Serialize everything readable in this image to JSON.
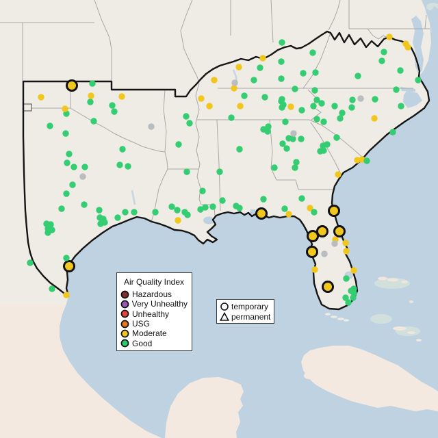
{
  "map": {
    "water_color": "#BFD2E1",
    "land_color": "#EFEBE5",
    "foreign_land_color": "#F3E9E0",
    "shallow_bank_color": "#D5E3DD",
    "state_line_color": "#A8A8A8",
    "region_outline_color": "#151515",
    "category_colors": {
      "g": "#34CD72",
      "m": "#F2C71D",
      "x": "#B9BDBF"
    },
    "large_marker_ring_color": "#111111",
    "points": [
      [
        105,
        125,
        "m",
        1
      ],
      [
        101,
        389,
        "m",
        1
      ],
      [
        382,
        312,
        "m",
        1
      ],
      [
        488,
        308,
        "m",
        1
      ],
      [
        471,
        338,
        "m",
        1
      ],
      [
        457,
        345,
        "m",
        1
      ],
      [
        496,
        338,
        "m",
        1
      ],
      [
        456,
        368,
        "m",
        1
      ],
      [
        479,
        419,
        "m",
        1
      ],
      [
        135,
        122,
        "g"
      ],
      [
        132,
        149,
        "g"
      ],
      [
        164,
        154,
        "g"
      ],
      [
        97,
        166,
        "g"
      ],
      [
        167,
        163,
        "g"
      ],
      [
        137,
        177,
        "g"
      ],
      [
        73,
        184,
        "g"
      ],
      [
        96,
        195,
        "g"
      ],
      [
        179,
        218,
        "g"
      ],
      [
        175,
        241,
        "g"
      ],
      [
        187,
        243,
        "g"
      ],
      [
        60,
        142,
        "m"
      ],
      [
        133,
        140,
        "m"
      ],
      [
        178,
        141,
        "m"
      ],
      [
        95,
        159,
        "m"
      ],
      [
        221,
        185,
        "x"
      ],
      [
        101,
        225,
        "g"
      ],
      [
        98,
        238,
        "g"
      ],
      [
        108,
        244,
        "g"
      ],
      [
        124,
        244,
        "g"
      ],
      [
        121,
        258,
        "x"
      ],
      [
        106,
        270,
        "g"
      ],
      [
        97,
        283,
        "g"
      ],
      [
        90,
        305,
        "g"
      ],
      [
        123,
        299,
        "g"
      ],
      [
        145,
        307,
        "g"
      ],
      [
        68,
        327,
        "g"
      ],
      [
        74,
        328,
        "g"
      ],
      [
        70,
        334,
        "g"
      ],
      [
        76,
        336,
        "g"
      ],
      [
        70,
        340,
        "g"
      ],
      [
        146,
        318,
        "g"
      ],
      [
        151,
        320,
        "g"
      ],
      [
        153,
        325,
        "g"
      ],
      [
        147,
        327,
        "g"
      ],
      [
        172,
        318,
        "g"
      ],
      [
        183,
        310,
        "g"
      ],
      [
        196,
        310,
        "g"
      ],
      [
        44,
        384,
        "g"
      ],
      [
        97,
        377,
        "g"
      ],
      [
        76,
        422,
        "g"
      ],
      [
        97,
        431,
        "m"
      ],
      [
        272,
        170,
        "g"
      ],
      [
        277,
        180,
        "g"
      ],
      [
        261,
        211,
        "g"
      ],
      [
        350,
        218,
        "g"
      ],
      [
        273,
        251,
        "g"
      ],
      [
        321,
        251,
        "g"
      ],
      [
        296,
        279,
        "g"
      ],
      [
        325,
        293,
        "g"
      ],
      [
        251,
        302,
        "g"
      ],
      [
        259,
        307,
        "g"
      ],
      [
        227,
        310,
        "g"
      ],
      [
        270,
        310,
        "g"
      ],
      [
        274,
        314,
        "g"
      ],
      [
        293,
        306,
        "g"
      ],
      [
        300,
        303,
        "g"
      ],
      [
        311,
        302,
        "g"
      ],
      [
        260,
        322,
        "m"
      ],
      [
        294,
        144,
        "m"
      ],
      [
        313,
        117,
        "m"
      ],
      [
        342,
        129,
        "m"
      ],
      [
        343,
        121,
        "x"
      ],
      [
        306,
        155,
        "m"
      ],
      [
        351,
        155,
        "m"
      ],
      [
        384,
        85,
        "m"
      ],
      [
        349,
        98,
        "m"
      ],
      [
        412,
        62,
        "g"
      ],
      [
        411,
        90,
        "g"
      ],
      [
        380,
        99,
        "g"
      ],
      [
        371,
        117,
        "g"
      ],
      [
        411,
        115,
        "g"
      ],
      [
        411,
        148,
        "g"
      ],
      [
        412,
        157,
        "g"
      ],
      [
        357,
        140,
        "g"
      ],
      [
        387,
        142,
        "g"
      ],
      [
        338,
        172,
        "g"
      ],
      [
        392,
        185,
        "g"
      ],
      [
        385,
        189,
        "g"
      ],
      [
        428,
        203,
        "g"
      ],
      [
        425,
        156,
        "m"
      ],
      [
        401,
        245,
        "g"
      ],
      [
        433,
        237,
        "g"
      ],
      [
        431,
        245,
        "g"
      ],
      [
        385,
        291,
        "g"
      ],
      [
        345,
        301,
        "g"
      ],
      [
        350,
        304,
        "g"
      ],
      [
        416,
        305,
        "g"
      ],
      [
        422,
        313,
        "m"
      ],
      [
        391,
        192,
        "g"
      ],
      [
        413,
        210,
        "g"
      ],
      [
        419,
        217,
        "g"
      ],
      [
        422,
        202,
        "g"
      ],
      [
        440,
        203,
        "g"
      ],
      [
        468,
        221,
        "g"
      ],
      [
        478,
        211,
        "g"
      ],
      [
        492,
        201,
        "g"
      ],
      [
        473,
        220,
        "g"
      ],
      [
        429,
        195,
        "x"
      ],
      [
        431,
        130,
        "g"
      ],
      [
        460,
        132,
        "g"
      ],
      [
        412,
        145,
        "g"
      ],
      [
        414,
        153,
        "g"
      ],
      [
        463,
        146,
        "g"
      ],
      [
        458,
        155,
        "g"
      ],
      [
        470,
        151,
        "g"
      ],
      [
        441,
        161,
        "g"
      ],
      [
        489,
        155,
        "g"
      ],
      [
        514,
        157,
        "g"
      ],
      [
        500,
        165,
        "g"
      ],
      [
        497,
        173,
        "g"
      ],
      [
        463,
        174,
        "g"
      ],
      [
        473,
        178,
        "g"
      ],
      [
        417,
        178,
        "g"
      ],
      [
        515,
        146,
        "g"
      ],
      [
        548,
        145,
        "g"
      ],
      [
        527,
        144,
        "x"
      ],
      [
        547,
        173,
        "m"
      ],
      [
        457,
        77,
        "g"
      ],
      [
        561,
        76,
        "g"
      ],
      [
        558,
        89,
        "g"
      ],
      [
        443,
        107,
        "g"
      ],
      [
        461,
        106,
        "g"
      ],
      [
        585,
        103,
        "g"
      ],
      [
        611,
        117,
        "g"
      ],
      [
        523,
        111,
        "g"
      ],
      [
        579,
        131,
        "g"
      ],
      [
        586,
        155,
        "g"
      ],
      [
        574,
        193,
        "g"
      ],
      [
        492,
        201,
        "g"
      ],
      [
        472,
        213,
        "g"
      ],
      [
        569,
        54,
        "m"
      ],
      [
        593,
        64,
        "m"
      ],
      [
        596,
        69,
        "m"
      ],
      [
        522,
        234,
        "m"
      ],
      [
        529,
        233,
        "m"
      ],
      [
        536,
        235,
        "g"
      ],
      [
        494,
        255,
        "m"
      ],
      [
        441,
        290,
        "g"
      ],
      [
        453,
        304,
        "m"
      ],
      [
        459,
        310,
        "g"
      ],
      [
        490,
        350,
        "m"
      ],
      [
        489,
        356,
        "x"
      ],
      [
        505,
        355,
        "m"
      ],
      [
        506,
        367,
        "m"
      ],
      [
        474,
        371,
        "x"
      ],
      [
        460,
        394,
        "m"
      ],
      [
        517,
        395,
        "m"
      ],
      [
        506,
        407,
        "g"
      ],
      [
        517,
        422,
        "g"
      ],
      [
        513,
        425,
        "g"
      ],
      [
        517,
        428,
        "g"
      ],
      [
        516,
        435,
        "g"
      ],
      [
        505,
        435,
        "g"
      ],
      [
        509,
        442,
        "g"
      ]
    ]
  },
  "legend_aqi": {
    "title": "Air Quality Index",
    "items": [
      {
        "label": "Hazardous",
        "color": "#7E3030"
      },
      {
        "label": "Very Unhealthy",
        "color": "#9B59B6"
      },
      {
        "label": "Unhealthy",
        "color": "#E3453C"
      },
      {
        "label": "USG",
        "color": "#E2791E"
      },
      {
        "label": "Moderate",
        "color": "#F2C71D"
      },
      {
        "label": "Good",
        "color": "#2ECC71"
      }
    ]
  },
  "legend_marker": {
    "items": [
      {
        "label": "temporary",
        "shape": "circle-icon"
      },
      {
        "label": "permanent",
        "shape": "triangle-icon"
      }
    ]
  }
}
